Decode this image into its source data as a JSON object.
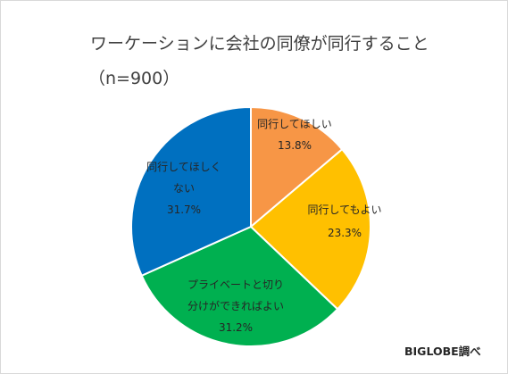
{
  "title_line1": "ワーケーションに会社の同僚が同行すること",
  "title_line2": "（n=900）",
  "source": "BIGLOBE調べ",
  "chart_data": {
    "type": "pie",
    "title": "ワーケーションに会社の同僚が同行すること（n=900）",
    "start_angle": "12 o'clock, clockwise",
    "slices": [
      {
        "label_lines": [
          "同行してほしい"
        ],
        "value_label": "13.8%",
        "value": 13.8,
        "color": "#F79646"
      },
      {
        "label_lines": [
          "同行してもよい"
        ],
        "value_label": "23.3%",
        "value": 23.3,
        "color": "#FFC000"
      },
      {
        "label_lines": [
          "プライベートと切り",
          "分けができればよい"
        ],
        "value_label": "31.2%",
        "value": 31.2,
        "color": "#00B050"
      },
      {
        "label_lines": [
          "同行してほしく",
          "ない"
        ],
        "value_label": "31.7%",
        "value": 31.7,
        "color": "#0070C0"
      }
    ]
  }
}
